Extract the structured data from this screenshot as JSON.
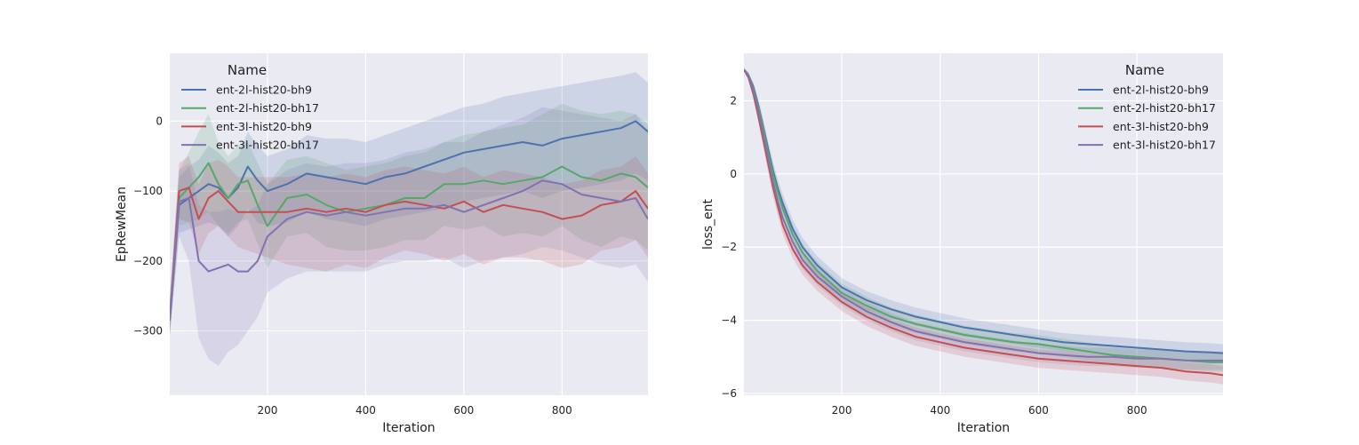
{
  "colors": {
    "background": "#ffffff",
    "plot_bg": "#eaeaf2",
    "grid": "#ffffff"
  },
  "chart_data": [
    {
      "type": "line",
      "xlabel": "Iteration",
      "ylabel": "EpRewMean",
      "xlim": [
        1,
        975
      ],
      "ylim": [
        -392,
        97
      ],
      "xticks": [
        200,
        400,
        600,
        800
      ],
      "yticks": [
        -300,
        -200,
        -100,
        0
      ],
      "grid": true,
      "legend": {
        "title": "Name",
        "placement": "top-left"
      },
      "x": [
        1,
        20,
        40,
        60,
        80,
        100,
        120,
        140,
        160,
        180,
        200,
        240,
        280,
        320,
        360,
        400,
        440,
        480,
        520,
        560,
        600,
        640,
        680,
        720,
        760,
        800,
        840,
        880,
        920,
        950,
        975
      ],
      "series": [
        {
          "name": "ent-2l-hist20-bh9",
          "color": "#4c72b0",
          "values": [
            -285,
            -120,
            -110,
            -100,
            -90,
            -95,
            -110,
            -95,
            -65,
            -85,
            -100,
            -90,
            -75,
            -80,
            -85,
            -90,
            -80,
            -75,
            -65,
            -55,
            -45,
            -40,
            -35,
            -30,
            -35,
            -25,
            -20,
            -15,
            -10,
            0,
            -15
          ],
          "upper": [
            -255,
            -80,
            -65,
            -55,
            -35,
            -45,
            -60,
            -50,
            -15,
            -35,
            -50,
            -40,
            -20,
            -25,
            -25,
            -30,
            -20,
            -10,
            0,
            10,
            20,
            25,
            35,
            40,
            45,
            50,
            55,
            60,
            65,
            70,
            55
          ],
          "lower": [
            -305,
            -160,
            -155,
            -150,
            -145,
            -150,
            -165,
            -150,
            -125,
            -145,
            -150,
            -145,
            -130,
            -140,
            -145,
            -150,
            -140,
            -135,
            -130,
            -125,
            -115,
            -110,
            -105,
            -100,
            -110,
            -100,
            -95,
            -90,
            -85,
            -75,
            -85
          ]
        },
        {
          "name": "ent-2l-hist20-bh17",
          "color": "#55a868",
          "values": [
            -285,
            -110,
            -95,
            -80,
            -60,
            -90,
            -110,
            -90,
            -85,
            -120,
            -150,
            -110,
            -105,
            -120,
            -130,
            -125,
            -120,
            -110,
            -110,
            -90,
            -90,
            -85,
            -90,
            -85,
            -80,
            -65,
            -80,
            -85,
            -75,
            -80,
            -95
          ],
          "upper": [
            -255,
            -70,
            -45,
            -15,
            10,
            -30,
            -50,
            -35,
            -30,
            -60,
            -90,
            -55,
            -50,
            -60,
            -70,
            -65,
            -60,
            -50,
            -45,
            -30,
            -20,
            -15,
            -10,
            -5,
            10,
            25,
            15,
            10,
            15,
            10,
            -5
          ],
          "lower": [
            -305,
            -150,
            -145,
            -140,
            -130,
            -150,
            -160,
            -145,
            -140,
            -175,
            -210,
            -165,
            -160,
            -180,
            -185,
            -185,
            -180,
            -170,
            -170,
            -150,
            -155,
            -150,
            -165,
            -160,
            -165,
            -150,
            -170,
            -180,
            -165,
            -170,
            -185
          ]
        },
        {
          "name": "ent-3l-hist20-bh9",
          "color": "#c44e52",
          "values": [
            -285,
            -100,
            -95,
            -140,
            -110,
            -100,
            -115,
            -130,
            -130,
            -130,
            -130,
            -130,
            -125,
            -130,
            -125,
            -130,
            -120,
            -115,
            -120,
            -125,
            -115,
            -130,
            -120,
            -125,
            -130,
            -140,
            -135,
            -120,
            -115,
            -100,
            -125
          ],
          "upper": [
            -255,
            -60,
            -50,
            -90,
            -60,
            -55,
            -65,
            -80,
            -80,
            -80,
            -80,
            -80,
            -75,
            -80,
            -75,
            -80,
            -70,
            -65,
            -70,
            -75,
            -65,
            -80,
            -70,
            -75,
            -80,
            -90,
            -85,
            -70,
            -65,
            -50,
            -75
          ],
          "lower": [
            -305,
            -140,
            -145,
            -190,
            -160,
            -150,
            -165,
            -180,
            -185,
            -190,
            -195,
            -205,
            -210,
            -215,
            -205,
            -210,
            -195,
            -185,
            -190,
            -200,
            -190,
            -205,
            -195,
            -195,
            -200,
            -210,
            -205,
            -185,
            -180,
            -170,
            -195
          ]
        },
        {
          "name": "ent-3l-hist20-bh17",
          "color": "#8172b2",
          "values": [
            -285,
            -115,
            -110,
            -200,
            -215,
            -210,
            -205,
            -215,
            -215,
            -200,
            -165,
            -140,
            -130,
            -135,
            -130,
            -135,
            -130,
            -125,
            -125,
            -120,
            -130,
            -120,
            -110,
            -100,
            -85,
            -90,
            -105,
            -110,
            -115,
            -110,
            -140
          ],
          "upper": [
            -255,
            -70,
            -60,
            -120,
            -130,
            -130,
            -125,
            -130,
            -130,
            -120,
            -90,
            -70,
            -60,
            -65,
            -60,
            -60,
            -55,
            -45,
            -40,
            -30,
            -30,
            -15,
            -5,
            5,
            20,
            15,
            10,
            5,
            0,
            10,
            -15
          ],
          "lower": [
            -305,
            -165,
            -200,
            -310,
            -340,
            -350,
            -330,
            -320,
            -300,
            -280,
            -245,
            -225,
            -215,
            -215,
            -215,
            -215,
            -205,
            -200,
            -200,
            -195,
            -210,
            -200,
            -195,
            -190,
            -180,
            -185,
            -195,
            -205,
            -210,
            -205,
            -230
          ]
        }
      ]
    },
    {
      "type": "line",
      "xlabel": "Iteration",
      "ylabel": "loss_ent",
      "xlim": [
        1,
        975
      ],
      "ylim": [
        -6.05,
        3.3
      ],
      "xticks": [
        200,
        400,
        600,
        800
      ],
      "yticks": [
        -6,
        -4,
        -2,
        0,
        2
      ],
      "grid": true,
      "legend": {
        "title": "Name",
        "placement": "top-right"
      },
      "x": [
        1,
        10,
        20,
        30,
        40,
        50,
        60,
        70,
        80,
        100,
        120,
        150,
        200,
        250,
        300,
        350,
        400,
        450,
        500,
        550,
        600,
        650,
        700,
        750,
        800,
        850,
        900,
        950,
        975
      ],
      "series": [
        {
          "name": "ent-2l-hist20-bh9",
          "color": "#4c72b0",
          "values": [
            2.85,
            2.7,
            2.4,
            1.9,
            1.3,
            0.7,
            0.1,
            -0.4,
            -0.8,
            -1.5,
            -2.0,
            -2.5,
            -3.1,
            -3.45,
            -3.7,
            -3.9,
            -4.05,
            -4.2,
            -4.3,
            -4.4,
            -4.5,
            -4.6,
            -4.65,
            -4.7,
            -4.75,
            -4.8,
            -4.85,
            -4.88,
            -4.9
          ],
          "upper": [
            2.9,
            2.78,
            2.5,
            2.05,
            1.5,
            0.9,
            0.35,
            -0.15,
            -0.55,
            -1.25,
            -1.75,
            -2.25,
            -2.85,
            -3.2,
            -3.45,
            -3.65,
            -3.8,
            -3.95,
            -4.05,
            -4.15,
            -4.25,
            -4.35,
            -4.4,
            -4.45,
            -4.5,
            -4.55,
            -4.6,
            -4.63,
            -4.65
          ],
          "lower": [
            2.8,
            2.62,
            2.3,
            1.75,
            1.1,
            0.5,
            -0.15,
            -0.65,
            -1.05,
            -1.75,
            -2.25,
            -2.75,
            -3.35,
            -3.7,
            -3.95,
            -4.15,
            -4.3,
            -4.45,
            -4.55,
            -4.65,
            -4.75,
            -4.85,
            -4.9,
            -4.95,
            -5.0,
            -5.05,
            -5.1,
            -5.13,
            -5.15
          ]
        },
        {
          "name": "ent-2l-hist20-bh17",
          "color": "#55a868",
          "values": [
            2.85,
            2.7,
            2.35,
            1.85,
            1.25,
            0.6,
            0.0,
            -0.5,
            -0.95,
            -1.65,
            -2.15,
            -2.65,
            -3.25,
            -3.6,
            -3.9,
            -4.1,
            -4.25,
            -4.4,
            -4.5,
            -4.6,
            -4.65,
            -4.75,
            -4.85,
            -4.95,
            -5.0,
            -5.05,
            -5.1,
            -5.15,
            -5.15
          ],
          "upper": [
            2.9,
            2.78,
            2.47,
            2.0,
            1.45,
            0.85,
            0.25,
            -0.25,
            -0.7,
            -1.4,
            -1.9,
            -2.4,
            -3.0,
            -3.35,
            -3.65,
            -3.85,
            -4.0,
            -4.15,
            -4.25,
            -4.35,
            -4.4,
            -4.5,
            -4.6,
            -4.7,
            -4.75,
            -4.8,
            -4.85,
            -4.9,
            -4.9
          ],
          "lower": [
            2.8,
            2.62,
            2.23,
            1.7,
            1.05,
            0.35,
            -0.25,
            -0.75,
            -1.2,
            -1.9,
            -2.4,
            -2.9,
            -3.5,
            -3.85,
            -4.15,
            -4.35,
            -4.5,
            -4.65,
            -4.75,
            -4.85,
            -4.9,
            -5.0,
            -5.1,
            -5.2,
            -5.25,
            -5.3,
            -5.35,
            -5.4,
            -5.4
          ]
        },
        {
          "name": "ent-3l-hist20-bh9",
          "color": "#c44e52",
          "values": [
            2.85,
            2.65,
            2.2,
            1.6,
            0.95,
            0.3,
            -0.35,
            -0.9,
            -1.4,
            -2.05,
            -2.5,
            -2.95,
            -3.5,
            -3.9,
            -4.2,
            -4.45,
            -4.6,
            -4.75,
            -4.85,
            -4.95,
            -5.05,
            -5.1,
            -5.15,
            -5.2,
            -5.25,
            -5.3,
            -5.4,
            -5.45,
            -5.5
          ],
          "upper": [
            2.9,
            2.73,
            2.32,
            1.75,
            1.15,
            0.55,
            -0.1,
            -0.65,
            -1.15,
            -1.8,
            -2.25,
            -2.7,
            -3.25,
            -3.65,
            -3.95,
            -4.2,
            -4.35,
            -4.5,
            -4.6,
            -4.7,
            -4.8,
            -4.85,
            -4.9,
            -4.95,
            -5.0,
            -5.05,
            -5.15,
            -5.2,
            -5.25
          ],
          "lower": [
            2.8,
            2.57,
            2.08,
            1.45,
            0.75,
            0.05,
            -0.6,
            -1.15,
            -1.65,
            -2.3,
            -2.75,
            -3.2,
            -3.75,
            -4.15,
            -4.45,
            -4.7,
            -4.85,
            -5.0,
            -5.1,
            -5.2,
            -5.3,
            -5.35,
            -5.4,
            -5.45,
            -5.5,
            -5.55,
            -5.65,
            -5.7,
            -5.75
          ]
        },
        {
          "name": "ent-3l-hist20-bh17",
          "color": "#8172b2",
          "values": [
            2.85,
            2.7,
            2.3,
            1.75,
            1.1,
            0.45,
            -0.2,
            -0.75,
            -1.2,
            -1.85,
            -2.35,
            -2.8,
            -3.35,
            -3.75,
            -4.05,
            -4.3,
            -4.45,
            -4.6,
            -4.7,
            -4.8,
            -4.9,
            -4.95,
            -5.0,
            -5.0,
            -5.05,
            -5.05,
            -5.1,
            -5.1,
            -5.1
          ],
          "upper": [
            2.9,
            2.78,
            2.42,
            1.9,
            1.3,
            0.7,
            0.05,
            -0.5,
            -0.95,
            -1.6,
            -2.1,
            -2.55,
            -3.1,
            -3.5,
            -3.8,
            -4.05,
            -4.2,
            -4.35,
            -4.45,
            -4.55,
            -4.65,
            -4.7,
            -4.75,
            -4.75,
            -4.8,
            -4.8,
            -4.85,
            -4.85,
            -4.85
          ],
          "lower": [
            2.8,
            2.62,
            2.18,
            1.6,
            0.9,
            0.2,
            -0.45,
            -1.0,
            -1.45,
            -2.1,
            -2.6,
            -3.05,
            -3.6,
            -4.0,
            -4.3,
            -4.55,
            -4.7,
            -4.85,
            -4.95,
            -5.05,
            -5.15,
            -5.2,
            -5.25,
            -5.25,
            -5.3,
            -5.3,
            -5.35,
            -5.35,
            -5.35
          ]
        }
      ]
    }
  ]
}
